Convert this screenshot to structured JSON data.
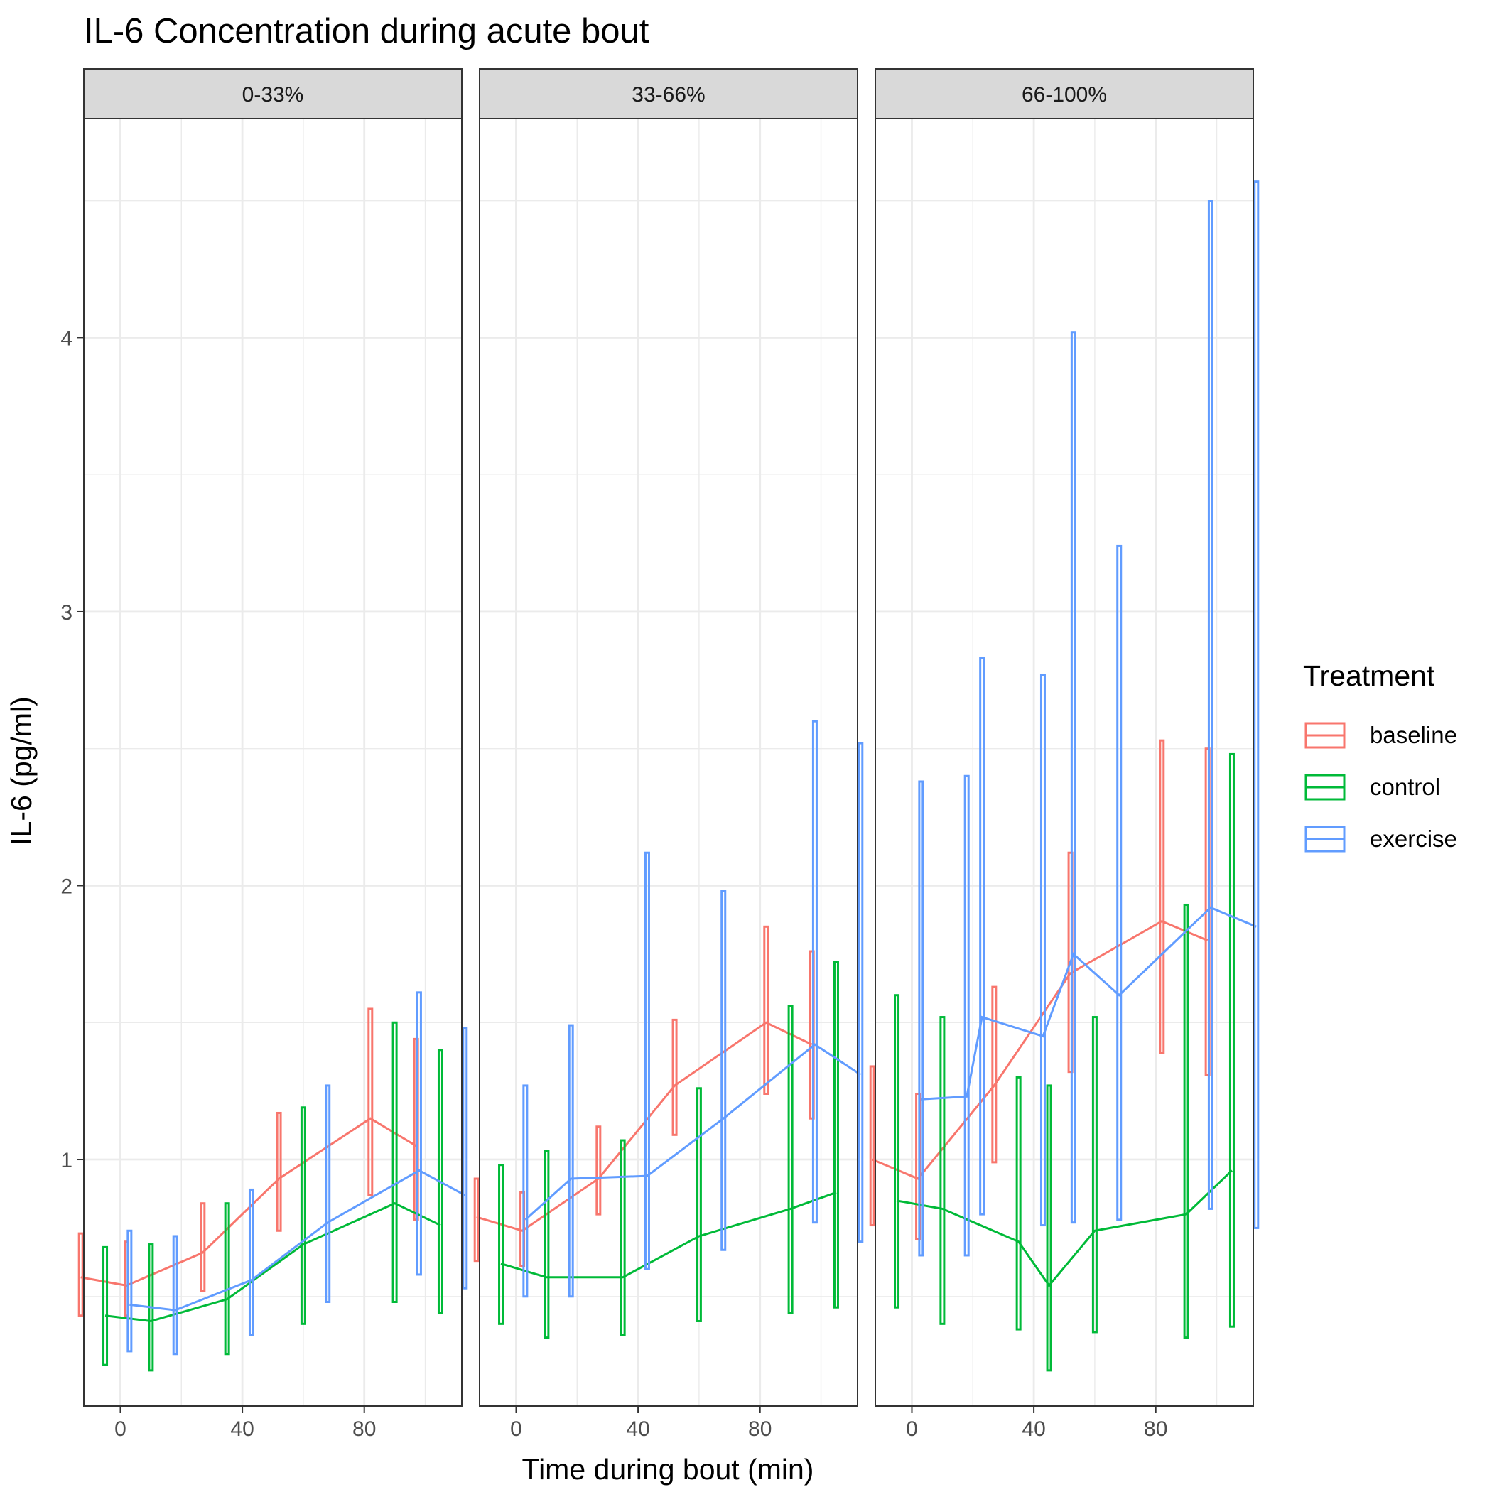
{
  "chart_data": {
    "type": "line",
    "title": "IL-6 Concentration during acute bout",
    "xlabel": "Time during bout (min)",
    "ylabel": "IL-6 (pg/ml)",
    "x_ticks": [
      0,
      40,
      80
    ],
    "y_ticks": [
      1,
      2,
      3,
      4
    ],
    "xlim": [
      -12,
      112
    ],
    "ylim": [
      0.1,
      4.8
    ],
    "grid": true,
    "legend_position": "right",
    "legend_title": "Treatment",
    "series_meta": [
      {
        "name": "baseline",
        "color": "#F8766D"
      },
      {
        "name": "control",
        "color": "#00BA38"
      },
      {
        "name": "exercise",
        "color": "#619CFF"
      }
    ],
    "panels": [
      {
        "label": "0-33%",
        "series": [
          {
            "name": "baseline",
            "points": [
              {
                "x": -5,
                "y": 0.57,
                "lo": 0.43,
                "hi": 0.73
              },
              {
                "x": 10,
                "y": 0.54,
                "lo": 0.43,
                "hi": 0.7
              },
              {
                "x": 35,
                "y": 0.66,
                "lo": 0.52,
                "hi": 0.84
              },
              {
                "x": 60,
                "y": 0.93,
                "lo": 0.74,
                "hi": 1.17
              },
              {
                "x": 90,
                "y": 1.15,
                "lo": 0.87,
                "hi": 1.55
              },
              {
                "x": 105,
                "y": 1.05,
                "lo": 0.78,
                "hi": 1.44
              }
            ]
          },
          {
            "name": "control",
            "points": [
              {
                "x": -5,
                "y": 0.43,
                "lo": 0.25,
                "hi": 0.68
              },
              {
                "x": 10,
                "y": 0.41,
                "lo": 0.23,
                "hi": 0.69
              },
              {
                "x": 35,
                "y": 0.49,
                "lo": 0.29,
                "hi": 0.84
              },
              {
                "x": 60,
                "y": 0.69,
                "lo": 0.4,
                "hi": 1.19
              },
              {
                "x": 90,
                "y": 0.84,
                "lo": 0.48,
                "hi": 1.5
              },
              {
                "x": 105,
                "y": 0.76,
                "lo": 0.44,
                "hi": 1.4
              }
            ]
          },
          {
            "name": "exercise",
            "points": [
              {
                "x": -5,
                "y": 0.47,
                "lo": 0.3,
                "hi": 0.74
              },
              {
                "x": 10,
                "y": 0.45,
                "lo": 0.29,
                "hi": 0.72
              },
              {
                "x": 35,
                "y": 0.56,
                "lo": 0.36,
                "hi": 0.89
              },
              {
                "x": 60,
                "y": 0.77,
                "lo": 0.48,
                "hi": 1.27
              },
              {
                "x": 90,
                "y": 0.96,
                "lo": 0.58,
                "hi": 1.61
              },
              {
                "x": 105,
                "y": 0.87,
                "lo": 0.53,
                "hi": 1.48
              }
            ]
          }
        ]
      },
      {
        "label": "33-66%",
        "series": [
          {
            "name": "baseline",
            "points": [
              {
                "x": -5,
                "y": 0.79,
                "lo": 0.63,
                "hi": 0.93
              },
              {
                "x": 10,
                "y": 0.74,
                "lo": 0.61,
                "hi": 0.88
              },
              {
                "x": 35,
                "y": 0.93,
                "lo": 0.8,
                "hi": 1.12
              },
              {
                "x": 60,
                "y": 1.27,
                "lo": 1.09,
                "hi": 1.51
              },
              {
                "x": 90,
                "y": 1.5,
                "lo": 1.24,
                "hi": 1.85
              },
              {
                "x": 105,
                "y": 1.42,
                "lo": 1.15,
                "hi": 1.76
              }
            ]
          },
          {
            "name": "control",
            "points": [
              {
                "x": -5,
                "y": 0.62,
                "lo": 0.4,
                "hi": 0.98
              },
              {
                "x": 10,
                "y": 0.57,
                "lo": 0.35,
                "hi": 1.03
              },
              {
                "x": 35,
                "y": 0.57,
                "lo": 0.36,
                "hi": 1.07
              },
              {
                "x": 60,
                "y": 0.72,
                "lo": 0.41,
                "hi": 1.26
              },
              {
                "x": 90,
                "y": 0.82,
                "lo": 0.44,
                "hi": 1.56
              },
              {
                "x": 105,
                "y": 0.88,
                "lo": 0.46,
                "hi": 1.72
              }
            ]
          },
          {
            "name": "exercise",
            "points": [
              {
                "x": -5,
                "y": 0.78,
                "lo": 0.5,
                "hi": 1.27
              },
              {
                "x": 10,
                "y": 0.93,
                "lo": 0.5,
                "hi": 1.49
              },
              {
                "x": 35,
                "y": 0.94,
                "lo": 0.6,
                "hi": 2.12
              },
              {
                "x": 60,
                "y": 1.15,
                "lo": 0.67,
                "hi": 1.98
              },
              {
                "x": 90,
                "y": 1.42,
                "lo": 0.77,
                "hi": 2.6
              },
              {
                "x": 105,
                "y": 1.31,
                "lo": 0.7,
                "hi": 2.52
              }
            ]
          }
        ]
      },
      {
        "label": "66-100%",
        "series": [
          {
            "name": "baseline",
            "points": [
              {
                "x": -5,
                "y": 1.0,
                "lo": 0.76,
                "hi": 1.34
              },
              {
                "x": 10,
                "y": 0.93,
                "lo": 0.71,
                "hi": 1.24
              },
              {
                "x": 35,
                "y": 1.27,
                "lo": 0.99,
                "hi": 1.63
              },
              {
                "x": 60,
                "y": 1.68,
                "lo": 1.32,
                "hi": 2.12
              },
              {
                "x": 90,
                "y": 1.87,
                "lo": 1.39,
                "hi": 2.53
              },
              {
                "x": 105,
                "y": 1.8,
                "lo": 1.31,
                "hi": 2.5
              }
            ]
          },
          {
            "name": "control",
            "points": [
              {
                "x": -5,
                "y": 0.85,
                "lo": 0.46,
                "hi": 1.6
              },
              {
                "x": 10,
                "y": 0.82,
                "lo": 0.4,
                "hi": 1.52
              },
              {
                "x": 35,
                "y": 0.7,
                "lo": 0.38,
                "hi": 1.3
              },
              {
                "x": 45,
                "y": 0.54,
                "lo": 0.23,
                "hi": 1.27
              },
              {
                "x": 60,
                "y": 0.74,
                "lo": 0.37,
                "hi": 1.52
              },
              {
                "x": 90,
                "y": 0.8,
                "lo": 0.35,
                "hi": 1.93
              },
              {
                "x": 105,
                "y": 0.96,
                "lo": 0.39,
                "hi": 2.48
              }
            ]
          },
          {
            "name": "exercise",
            "points": [
              {
                "x": -5,
                "y": 1.22,
                "lo": 0.65,
                "hi": 2.38
              },
              {
                "x": 10,
                "y": 1.23,
                "lo": 0.65,
                "hi": 2.4
              },
              {
                "x": 15,
                "y": 1.52,
                "lo": 0.8,
                "hi": 2.83
              },
              {
                "x": 35,
                "y": 1.45,
                "lo": 0.76,
                "hi": 2.77
              },
              {
                "x": 45,
                "y": 1.75,
                "lo": 0.77,
                "hi": 4.02
              },
              {
                "x": 60,
                "y": 1.6,
                "lo": 0.78,
                "hi": 3.24
              },
              {
                "x": 90,
                "y": 1.92,
                "lo": 0.82,
                "hi": 4.5
              },
              {
                "x": 105,
                "y": 1.85,
                "lo": 0.75,
                "hi": 4.57
              }
            ]
          }
        ]
      }
    ]
  }
}
